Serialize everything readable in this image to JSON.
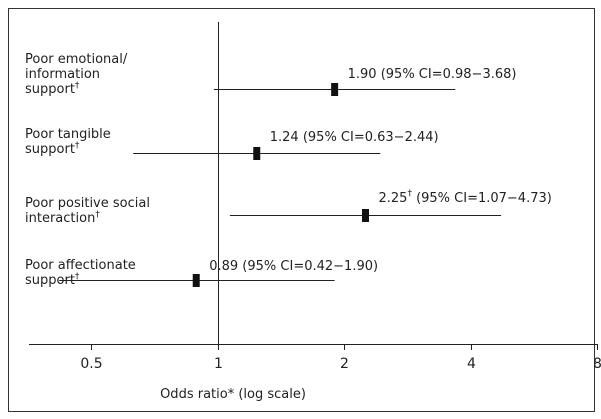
{
  "chart_data": {
    "type": "forest",
    "xlabel": "Odds ratio* (log scale)",
    "x_scale": "log",
    "xlim": [
      0.35,
      8
    ],
    "xticks": [
      {
        "value": 0.5,
        "label": "0.5"
      },
      {
        "value": 1,
        "label": "1"
      },
      {
        "value": 2,
        "label": "2"
      },
      {
        "value": 4,
        "label": "4"
      },
      {
        "value": 8,
        "label": "8"
      }
    ],
    "reference_value": 1,
    "rows": [
      {
        "label_lines": [
          "Poor emotional/",
          "information",
          "support"
        ],
        "label_dagger": "†",
        "or": 1.9,
        "ci_low": 0.98,
        "ci_high": 3.68,
        "value_text": "1.90",
        "value_dagger": "",
        "ci_text": "(95% CI=0.98−3.68)"
      },
      {
        "label_lines": [
          "Poor tangible",
          "support"
        ],
        "label_dagger": "†",
        "or": 1.24,
        "ci_low": 0.63,
        "ci_high": 2.44,
        "value_text": "1.24",
        "value_dagger": "",
        "ci_text": "(95% CI=0.63−2.44)"
      },
      {
        "label_lines": [
          "Poor positive social",
          "interaction"
        ],
        "label_dagger": "†",
        "or": 2.25,
        "ci_low": 1.07,
        "ci_high": 4.73,
        "value_text": "2.25",
        "value_dagger": "†",
        "ci_text": "(95% CI=1.07−4.73)"
      },
      {
        "label_lines": [
          "Poor affectionate",
          "support"
        ],
        "label_dagger": "†",
        "or": 0.89,
        "ci_low": 0.42,
        "ci_high": 1.9,
        "value_text": "0.89",
        "value_dagger": "",
        "ci_text": "(95% CI=0.42−1.90)"
      }
    ]
  }
}
